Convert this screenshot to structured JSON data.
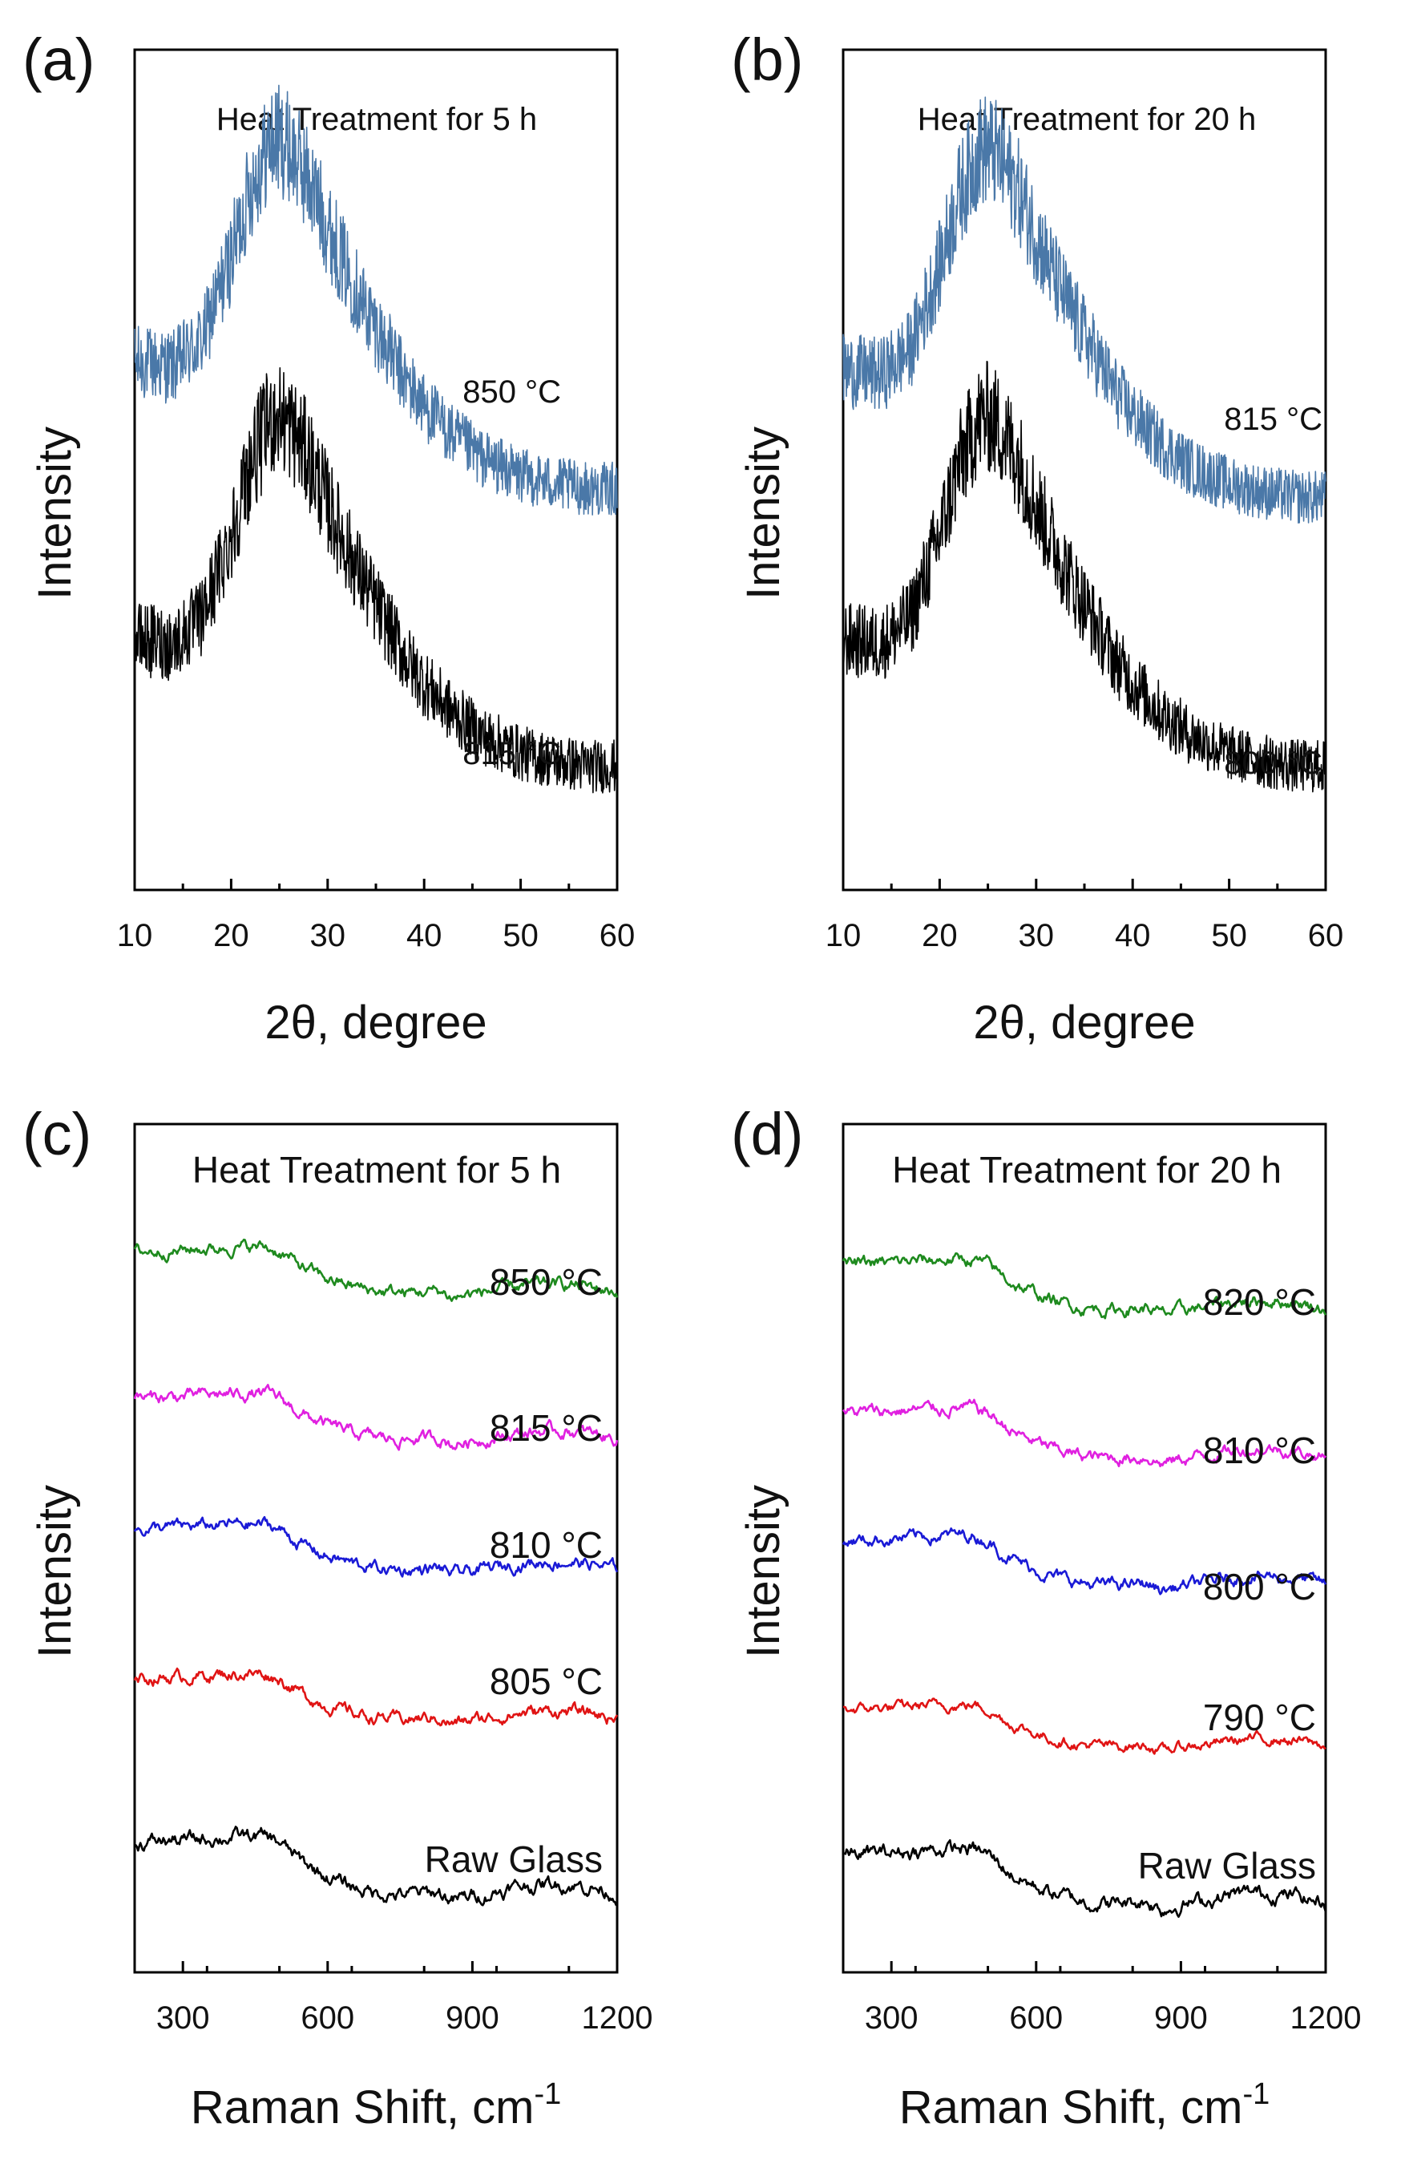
{
  "figure": {
    "chart_data": [
      {
        "type": "line",
        "panel": "(a)",
        "title": "Heat Treatment for 5 h",
        "xlabel": "2θ, degree",
        "ylabel": "Intensity",
        "xlim": [
          10,
          60
        ],
        "xticks": [
          10,
          20,
          30,
          40,
          50,
          60
        ],
        "grid": false,
        "y_ticks_labeled": false,
        "series": [
          {
            "name": "850 °C",
            "color": "#4a78a8",
            "x": [
              10,
              14,
              17,
              20,
              22,
              24,
              25,
              26,
              28,
              30,
              32,
              34,
              36,
              38,
              40,
              43,
              46,
              50,
              54,
              57,
              60
            ],
            "y": [
              0.4,
              0.39,
              0.45,
              0.64,
              0.8,
              0.9,
              0.91,
              0.89,
              0.82,
              0.71,
              0.61,
              0.52,
              0.44,
              0.36,
              0.3,
              0.23,
              0.18,
              0.14,
              0.12,
              0.11,
              0.11
            ]
          },
          {
            "name": "815 °C",
            "color": "#000000",
            "x": [
              10,
              14,
              17,
              20,
              22,
              24,
              25,
              26,
              28,
              30,
              32,
              34,
              36,
              38,
              40,
              43,
              46,
              50,
              54,
              57,
              60
            ],
            "y": [
              0.4,
              0.39,
              0.45,
              0.64,
              0.8,
              0.9,
              0.91,
              0.89,
              0.82,
              0.71,
              0.61,
              0.52,
              0.44,
              0.36,
              0.3,
              0.23,
              0.18,
              0.14,
              0.12,
              0.11,
              0.11
            ]
          }
        ]
      },
      {
        "type": "line",
        "panel": "(b)",
        "title": "Heat Treatment for 20 h",
        "xlabel": "2θ, degree",
        "ylabel": "Intensity",
        "xlim": [
          10,
          60
        ],
        "xticks": [
          10,
          20,
          30,
          40,
          50,
          60
        ],
        "grid": false,
        "y_ticks_labeled": false,
        "series": [
          {
            "name": "815 °C",
            "color": "#4a78a8",
            "x": [
              10,
              14,
              17,
              20,
              22,
              24,
              25,
              26,
              28,
              30,
              32,
              34,
              36,
              38,
              40,
              43,
              46,
              50,
              54,
              57,
              60
            ],
            "y": [
              0.4,
              0.39,
              0.45,
              0.64,
              0.8,
              0.9,
              0.91,
              0.89,
              0.82,
              0.71,
              0.61,
              0.52,
              0.44,
              0.36,
              0.3,
              0.23,
              0.18,
              0.14,
              0.12,
              0.11,
              0.11
            ]
          },
          {
            "name": "800 °C",
            "color": "#000000",
            "x": [
              10,
              14,
              17,
              20,
              22,
              24,
              25,
              26,
              28,
              30,
              32,
              34,
              36,
              38,
              40,
              43,
              46,
              50,
              54,
              57,
              60
            ],
            "y": [
              0.4,
              0.39,
              0.45,
              0.64,
              0.8,
              0.9,
              0.91,
              0.89,
              0.82,
              0.71,
              0.61,
              0.52,
              0.44,
              0.36,
              0.3,
              0.23,
              0.18,
              0.14,
              0.12,
              0.11,
              0.11
            ]
          }
        ]
      },
      {
        "type": "line",
        "panel": "(c)",
        "title": "Heat Treatment for 5 h",
        "xlabel": "Raman Shift, cm",
        "xlabel_superscript": "-1",
        "ylabel": "Intensity",
        "xlim": [
          200,
          1200
        ],
        "xticks": [
          300,
          600,
          900,
          1200
        ],
        "grid": false,
        "y_ticks_labeled": false,
        "series": [
          {
            "name": "850 °C",
            "color": "#1e8a1e",
            "x": [
              200,
              300,
              400,
              470,
              500,
              530,
              560,
              600,
              650,
              700,
              750,
              800,
              830,
              860,
              900,
              950,
              1000,
              1050,
              1100,
              1150,
              1200
            ],
            "y": [
              0.95,
              0.97,
              1.0,
              1.0,
              0.95,
              0.84,
              0.75,
              0.66,
              0.58,
              0.53,
              0.51,
              0.52,
              0.53,
              0.46,
              0.5,
              0.54,
              0.58,
              0.6,
              0.6,
              0.57,
              0.52
            ]
          },
          {
            "name": "815 °C",
            "color": "#e020e0",
            "x": [
              200,
              300,
              400,
              470,
              500,
              530,
              560,
              600,
              650,
              700,
              750,
              800,
              830,
              860,
              900,
              950,
              1000,
              1050,
              1100,
              1150,
              1200
            ],
            "y": [
              0.95,
              0.97,
              1.0,
              1.0,
              0.95,
              0.84,
              0.75,
              0.66,
              0.58,
              0.53,
              0.51,
              0.52,
              0.53,
              0.46,
              0.5,
              0.54,
              0.58,
              0.6,
              0.6,
              0.57,
              0.52
            ]
          },
          {
            "name": "810 °C",
            "color": "#1a1ad6",
            "x": [
              200,
              300,
              400,
              470,
              500,
              530,
              560,
              600,
              650,
              700,
              750,
              800,
              830,
              860,
              900,
              950,
              1000,
              1050,
              1100,
              1150,
              1200
            ],
            "y": [
              0.95,
              0.97,
              1.0,
              1.0,
              0.95,
              0.84,
              0.75,
              0.66,
              0.58,
              0.53,
              0.51,
              0.52,
              0.53,
              0.46,
              0.5,
              0.54,
              0.58,
              0.6,
              0.6,
              0.57,
              0.52
            ]
          },
          {
            "name": "805 °C",
            "color": "#e01414",
            "x": [
              200,
              300,
              400,
              470,
              500,
              530,
              560,
              600,
              650,
              700,
              750,
              800,
              830,
              860,
              900,
              950,
              1000,
              1050,
              1100,
              1150,
              1200
            ],
            "y": [
              0.95,
              0.97,
              1.0,
              1.0,
              0.95,
              0.84,
              0.75,
              0.66,
              0.58,
              0.53,
              0.51,
              0.52,
              0.53,
              0.46,
              0.5,
              0.54,
              0.58,
              0.6,
              0.6,
              0.57,
              0.52
            ]
          },
          {
            "name": "Raw Glass",
            "color": "#000000",
            "x": [
              200,
              300,
              400,
              470,
              500,
              530,
              560,
              600,
              650,
              700,
              750,
              800,
              830,
              860,
              900,
              950,
              1000,
              1050,
              1100,
              1150,
              1200
            ],
            "y": [
              0.95,
              0.97,
              1.0,
              1.0,
              0.95,
              0.84,
              0.75,
              0.66,
              0.58,
              0.53,
              0.51,
              0.52,
              0.53,
              0.46,
              0.5,
              0.54,
              0.58,
              0.6,
              0.6,
              0.57,
              0.52
            ]
          }
        ]
      },
      {
        "type": "line",
        "panel": "(d)",
        "title": "Heat Treatment for 20 h",
        "xlabel": "Raman Shift, cm",
        "xlabel_superscript": "-1",
        "ylabel": "Intensity",
        "xlim": [
          200,
          1200
        ],
        "xticks": [
          300,
          600,
          900,
          1200
        ],
        "grid": false,
        "y_ticks_labeled": false,
        "series": [
          {
            "name": "820 °C",
            "color": "#1e8a1e",
            "x": [
              200,
              300,
              400,
              470,
              500,
              530,
              560,
              600,
              650,
              700,
              750,
              800,
              830,
              860,
              900,
              950,
              1000,
              1050,
              1100,
              1150,
              1200
            ],
            "y": [
              0.95,
              0.97,
              1.0,
              1.0,
              0.95,
              0.84,
              0.75,
              0.66,
              0.58,
              0.53,
              0.51,
              0.52,
              0.53,
              0.46,
              0.5,
              0.54,
              0.58,
              0.6,
              0.6,
              0.57,
              0.52
            ]
          },
          {
            "name": "810 °C",
            "color": "#e020e0",
            "x": [
              200,
              300,
              400,
              470,
              500,
              530,
              560,
              600,
              650,
              700,
              750,
              800,
              830,
              860,
              900,
              950,
              1000,
              1050,
              1100,
              1150,
              1200
            ],
            "y": [
              0.95,
              0.97,
              1.0,
              1.0,
              0.95,
              0.84,
              0.75,
              0.66,
              0.58,
              0.53,
              0.51,
              0.52,
              0.53,
              0.46,
              0.5,
              0.54,
              0.58,
              0.6,
              0.6,
              0.57,
              0.52
            ]
          },
          {
            "name": "800 °C",
            "color": "#1a1ad6",
            "x": [
              200,
              300,
              400,
              470,
              500,
              530,
              560,
              600,
              650,
              700,
              750,
              800,
              830,
              860,
              900,
              950,
              1000,
              1050,
              1100,
              1150,
              1200
            ],
            "y": [
              0.95,
              0.97,
              1.0,
              1.0,
              0.95,
              0.84,
              0.75,
              0.66,
              0.58,
              0.53,
              0.51,
              0.52,
              0.53,
              0.46,
              0.5,
              0.54,
              0.58,
              0.6,
              0.6,
              0.57,
              0.52
            ]
          },
          {
            "name": "790 °C",
            "color": "#e01414",
            "x": [
              200,
              300,
              400,
              470,
              500,
              530,
              560,
              600,
              650,
              700,
              750,
              800,
              830,
              860,
              900,
              950,
              1000,
              1050,
              1100,
              1150,
              1200
            ],
            "y": [
              0.95,
              0.97,
              1.0,
              1.0,
              0.95,
              0.84,
              0.75,
              0.66,
              0.58,
              0.53,
              0.51,
              0.52,
              0.53,
              0.46,
              0.5,
              0.54,
              0.58,
              0.6,
              0.6,
              0.57,
              0.52
            ]
          },
          {
            "name": "Raw Glass",
            "color": "#000000",
            "x": [
              200,
              300,
              400,
              470,
              500,
              530,
              560,
              600,
              650,
              700,
              750,
              800,
              830,
              860,
              900,
              950,
              1000,
              1050,
              1100,
              1150,
              1200
            ],
            "y": [
              0.95,
              0.97,
              1.0,
              1.0,
              0.95,
              0.84,
              0.75,
              0.66,
              0.58,
              0.53,
              0.51,
              0.52,
              0.53,
              0.46,
              0.5,
              0.54,
              0.58,
              0.6,
              0.6,
              0.57,
              0.52
            ]
          }
        ]
      }
    ]
  }
}
